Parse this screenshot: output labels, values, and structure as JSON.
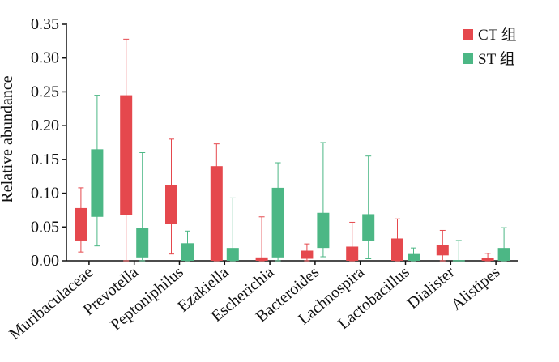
{
  "chart_data": {
    "type": "box",
    "ylabel": "Relative abundance",
    "ylim": [
      0,
      0.35
    ],
    "yticks": [
      "0.00",
      "0.05",
      "0.10",
      "0.15",
      "0.20",
      "0.25",
      "0.30",
      "0.35"
    ],
    "categories": [
      "Muribaculaceae",
      "Prevotella",
      "Peptoniphilus",
      "Ezakiella",
      "Escherichia",
      "Bacteroides",
      "Lachnospira",
      "Lactobacillus",
      "Dialister",
      "Alistipes"
    ],
    "legend_position": "top-right",
    "series": [
      {
        "name": "CT 组",
        "color": "#E5484D",
        "boxes": [
          {
            "min": 0.013,
            "q1": 0.03,
            "q3": 0.078,
            "max": 0.108
          },
          {
            "min": 0.0,
            "q1": 0.068,
            "q3": 0.245,
            "max": 0.328
          },
          {
            "min": 0.01,
            "q1": 0.055,
            "q3": 0.112,
            "max": 0.18
          },
          {
            "min": 0.0,
            "q1": 0.0,
            "q3": 0.14,
            "max": 0.173
          },
          {
            "min": 0.0,
            "q1": 0.0,
            "q3": 0.005,
            "max": 0.065
          },
          {
            "min": 0.0,
            "q1": 0.003,
            "q3": 0.015,
            "max": 0.025
          },
          {
            "min": 0.0,
            "q1": 0.0,
            "q3": 0.021,
            "max": 0.057
          },
          {
            "min": 0.0,
            "q1": 0.0,
            "q3": 0.033,
            "max": 0.062
          },
          {
            "min": 0.0,
            "q1": 0.008,
            "q3": 0.023,
            "max": 0.045
          },
          {
            "min": 0.0,
            "q1": 0.0,
            "q3": 0.004,
            "max": 0.011
          }
        ]
      },
      {
        "name": "ST 组",
        "color": "#4CB785",
        "boxes": [
          {
            "min": 0.022,
            "q1": 0.065,
            "q3": 0.165,
            "max": 0.245
          },
          {
            "min": 0.0,
            "q1": 0.005,
            "q3": 0.048,
            "max": 0.16
          },
          {
            "min": 0.0,
            "q1": 0.0,
            "q3": 0.026,
            "max": 0.044
          },
          {
            "min": 0.0,
            "q1": 0.0,
            "q3": 0.019,
            "max": 0.093
          },
          {
            "min": 0.0,
            "q1": 0.005,
            "q3": 0.108,
            "max": 0.145
          },
          {
            "min": 0.006,
            "q1": 0.019,
            "q3": 0.071,
            "max": 0.175
          },
          {
            "min": 0.003,
            "q1": 0.03,
            "q3": 0.069,
            "max": 0.155
          },
          {
            "min": 0.0,
            "q1": 0.0,
            "q3": 0.01,
            "max": 0.019
          },
          {
            "min": 0.0,
            "q1": 0.0,
            "q3": 0.001,
            "max": 0.03
          },
          {
            "min": 0.0,
            "q1": 0.0,
            "q3": 0.019,
            "max": 0.049
          }
        ]
      }
    ]
  }
}
